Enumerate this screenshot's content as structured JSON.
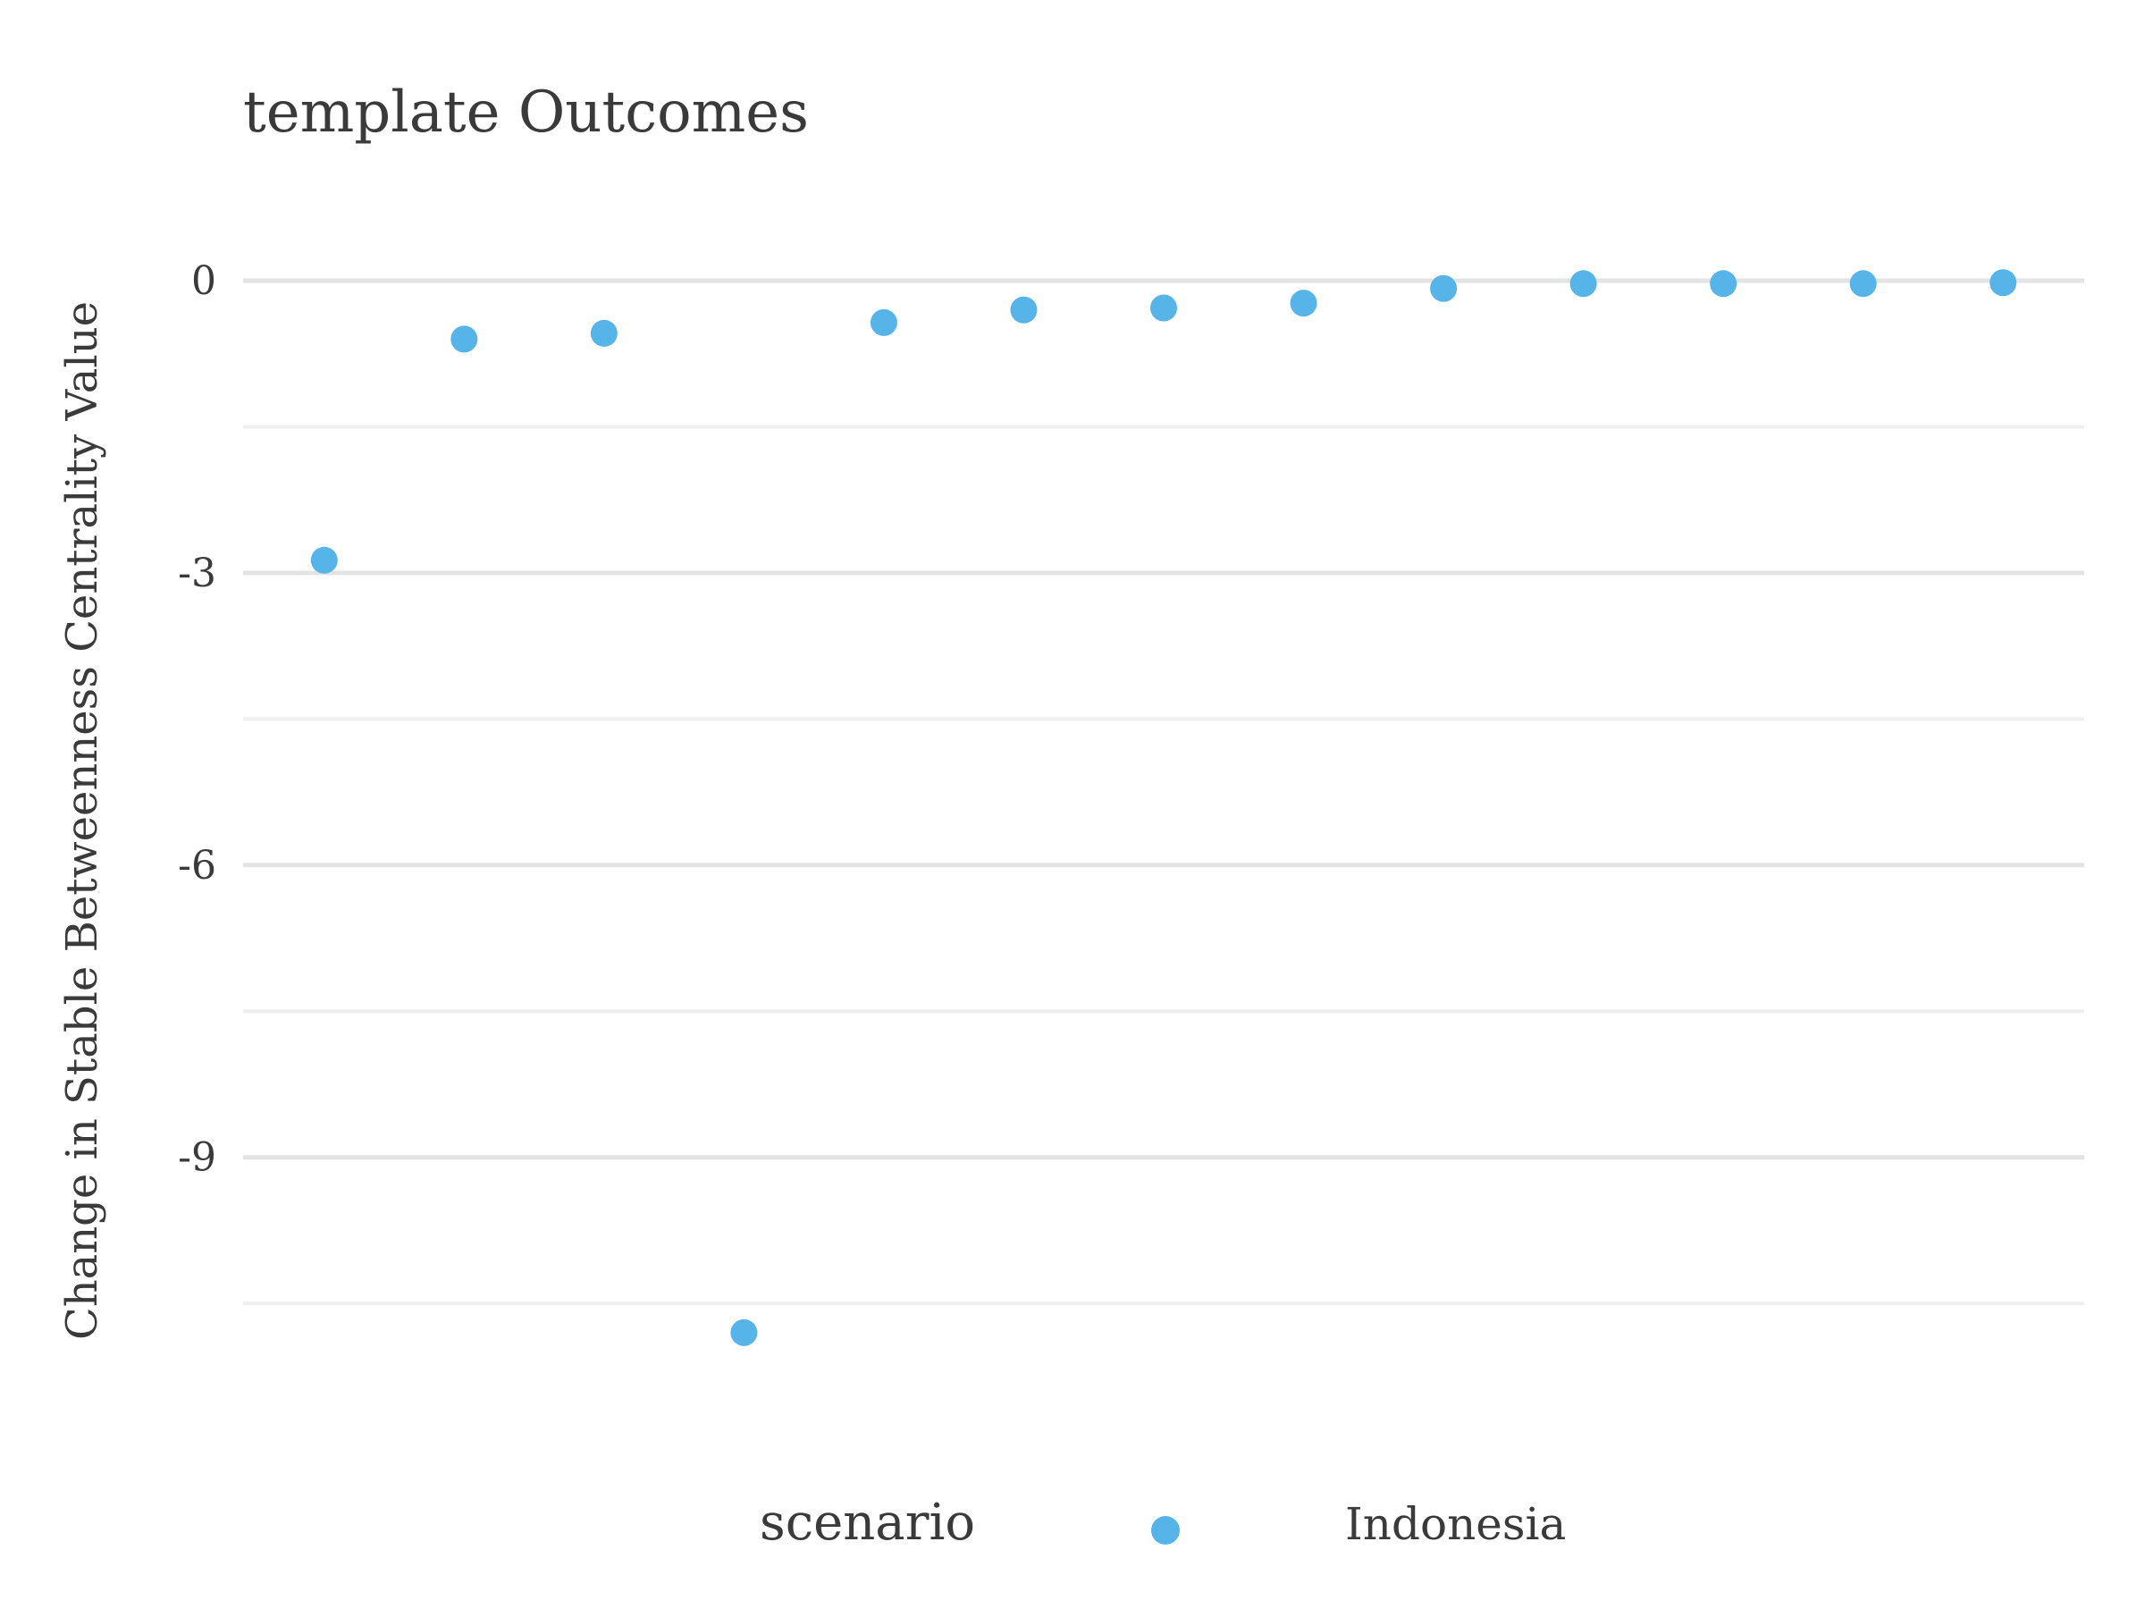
{
  "chart_data": {
    "type": "scatter",
    "title": "template Outcomes",
    "xlabel": "",
    "ylabel": "Change in Stable Betweenness Centrality Value",
    "x": [
      1,
      2,
      3,
      4,
      5,
      6,
      7,
      8,
      9,
      10,
      11,
      12,
      13
    ],
    "series": [
      {
        "name": "Indonesia",
        "color": "#56B4E9",
        "values": [
          -2.87,
          -0.6,
          -0.54,
          -10.8,
          -0.43,
          -0.3,
          -0.28,
          -0.23,
          -0.08,
          -0.03,
          -0.03,
          -0.03,
          -0.02
        ]
      }
    ],
    "yticks": [
      0,
      -3,
      -6,
      -9
    ],
    "ytick_labels": [
      "0",
      "-3",
      "-6",
      "-9"
    ],
    "ylim": [
      -11.6,
      0.45
    ],
    "xlim": [
      0.42,
      13.58
    ],
    "grid": true,
    "legend": {
      "title": "scenario",
      "position": "bottom"
    }
  }
}
